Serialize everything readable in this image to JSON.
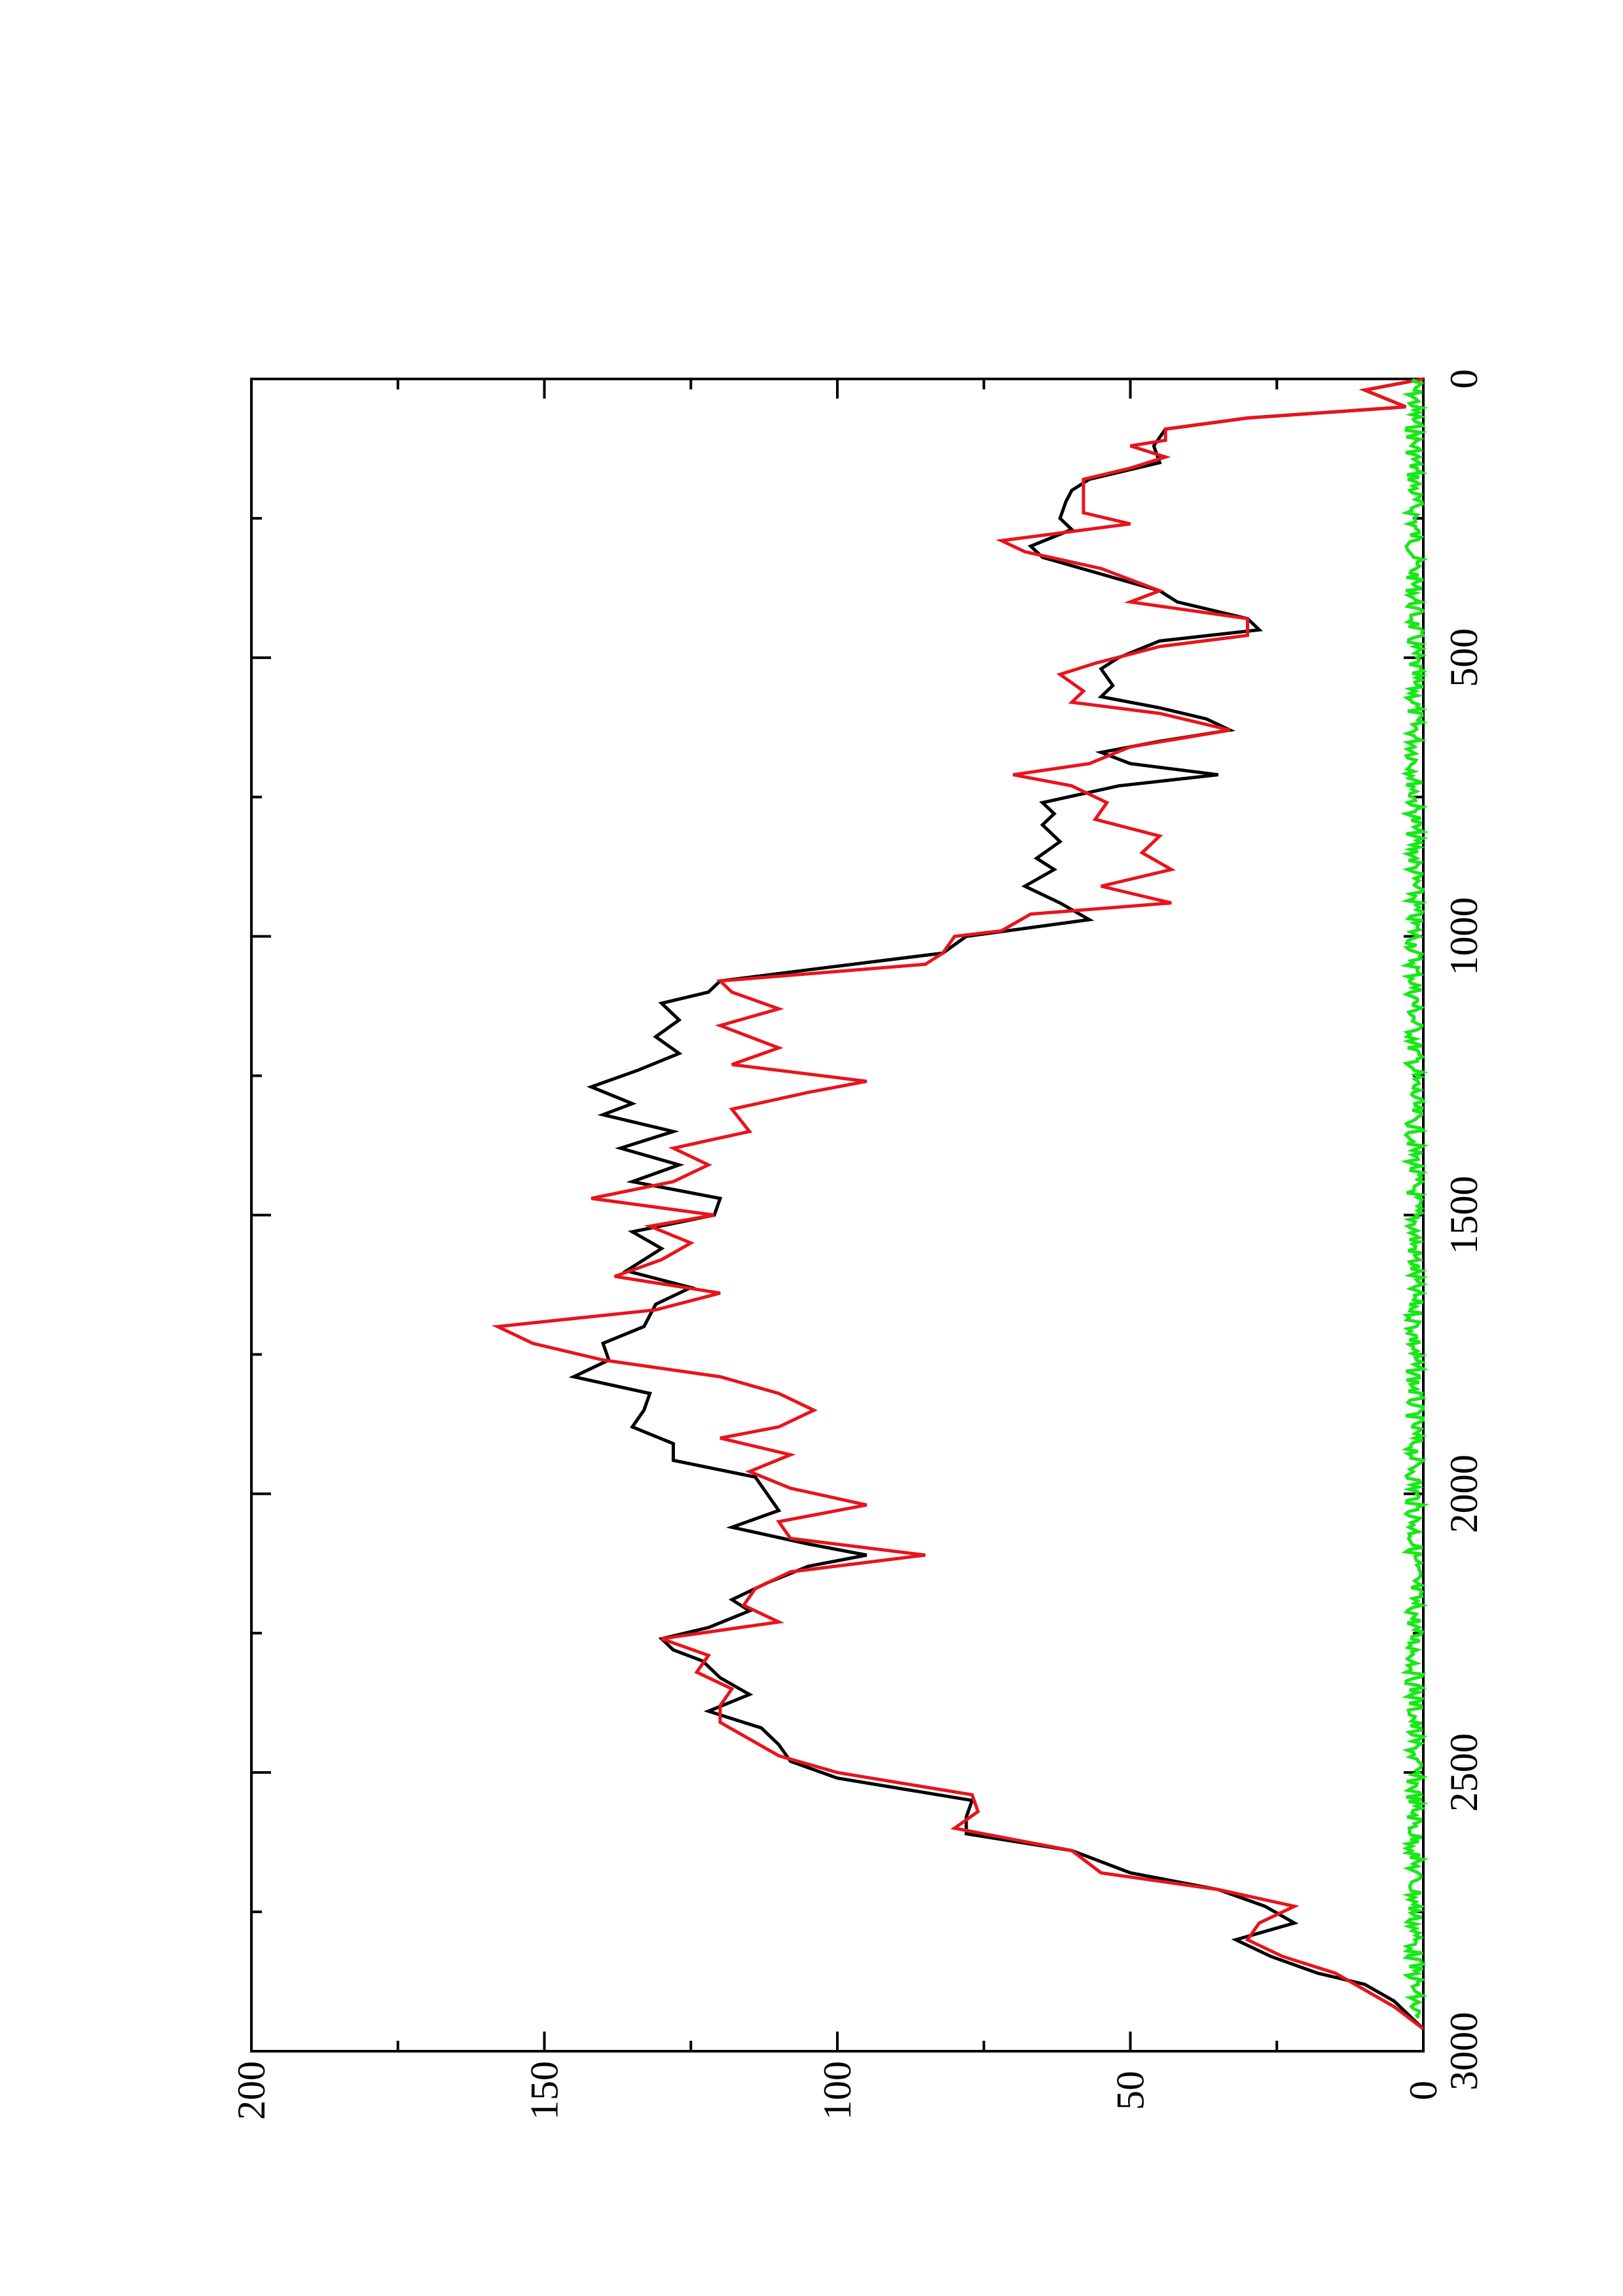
{
  "chart_data": {
    "type": "line",
    "title": "",
    "xlabel": "",
    "ylabel": "",
    "xlim": [
      0,
      3000
    ],
    "ylim": [
      0,
      200
    ],
    "x_ticks": [
      0,
      500,
      1000,
      1500,
      2000,
      2500,
      3000
    ],
    "x_tick_labels": [
      "0",
      "500",
      "1000",
      "1500",
      "2000",
      "2500",
      "3000"
    ],
    "y_ticks": [
      0,
      50,
      100,
      150,
      200
    ],
    "y_tick_labels": [
      "0",
      "50",
      "100",
      "150",
      "200"
    ],
    "grid": false,
    "legend": "none",
    "orientation": "rotated 90 degrees counter-clockwise",
    "series": [
      {
        "color": "#000000",
        "points": [
          [
            0,
            0
          ],
          [
            20,
            10
          ],
          [
            50,
            3
          ],
          [
            70,
            30
          ],
          [
            90,
            44
          ],
          [
            120,
            46
          ],
          [
            150,
            45
          ],
          [
            180,
            57
          ],
          [
            200,
            60
          ],
          [
            220,
            61
          ],
          [
            250,
            62
          ],
          [
            270,
            60
          ],
          [
            300,
            67
          ],
          [
            320,
            65
          ],
          [
            350,
            55
          ],
          [
            380,
            45
          ],
          [
            400,
            42
          ],
          [
            430,
            30
          ],
          [
            450,
            28
          ],
          [
            470,
            45
          ],
          [
            500,
            52
          ],
          [
            520,
            55
          ],
          [
            550,
            53
          ],
          [
            570,
            55
          ],
          [
            590,
            45
          ],
          [
            610,
            37
          ],
          [
            630,
            33
          ],
          [
            650,
            45
          ],
          [
            670,
            55
          ],
          [
            690,
            50
          ],
          [
            710,
            35
          ],
          [
            730,
            52
          ],
          [
            760,
            65
          ],
          [
            780,
            63
          ],
          [
            800,
            65
          ],
          [
            830,
            62
          ],
          [
            860,
            66
          ],
          [
            880,
            63
          ],
          [
            910,
            68
          ],
          [
            940,
            62
          ],
          [
            970,
            57
          ],
          [
            1000,
            78
          ],
          [
            1030,
            82
          ],
          [
            1060,
            105
          ],
          [
            1080,
            120
          ],
          [
            1100,
            122
          ],
          [
            1120,
            130
          ],
          [
            1150,
            127
          ],
          [
            1180,
            131
          ],
          [
            1210,
            127
          ],
          [
            1240,
            134
          ],
          [
            1270,
            142
          ],
          [
            1300,
            135
          ],
          [
            1320,
            140
          ],
          [
            1350,
            128
          ],
          [
            1380,
            137
          ],
          [
            1410,
            127
          ],
          [
            1440,
            135
          ],
          [
            1470,
            120
          ],
          [
            1500,
            121
          ],
          [
            1530,
            135
          ],
          [
            1560,
            130
          ],
          [
            1600,
            136
          ],
          [
            1630,
            125
          ],
          [
            1660,
            131
          ],
          [
            1700,
            133
          ],
          [
            1730,
            140
          ],
          [
            1760,
            139
          ],
          [
            1790,
            145
          ],
          [
            1820,
            132
          ],
          [
            1850,
            133
          ],
          [
            1880,
            135
          ],
          [
            1910,
            128
          ],
          [
            1940,
            128
          ],
          [
            1970,
            114
          ],
          [
            2000,
            112
          ],
          [
            2030,
            110
          ],
          [
            2060,
            118
          ],
          [
            2090,
            105
          ],
          [
            2110,
            95
          ],
          [
            2130,
            105
          ],
          [
            2160,
            112
          ],
          [
            2190,
            118
          ],
          [
            2210,
            115
          ],
          [
            2240,
            122
          ],
          [
            2260,
            130
          ],
          [
            2280,
            128
          ],
          [
            2300,
            123
          ],
          [
            2330,
            120
          ],
          [
            2360,
            115
          ],
          [
            2390,
            122
          ],
          [
            2420,
            113
          ],
          [
            2450,
            110
          ],
          [
            2480,
            108
          ],
          [
            2510,
            100
          ],
          [
            2550,
            77
          ],
          [
            2580,
            78
          ],
          [
            2610,
            78
          ],
          [
            2640,
            60
          ],
          [
            2680,
            50
          ],
          [
            2710,
            35
          ],
          [
            2740,
            27
          ],
          [
            2770,
            22
          ],
          [
            2800,
            32
          ],
          [
            2830,
            26
          ],
          [
            2860,
            18
          ],
          [
            2880,
            10
          ],
          [
            2910,
            5
          ],
          [
            2940,
            2
          ],
          [
            2960,
            0
          ]
        ]
      },
      {
        "color": "#e8141c",
        "points": [
          [
            0,
            0
          ],
          [
            20,
            10
          ],
          [
            50,
            3
          ],
          [
            70,
            30
          ],
          [
            90,
            44
          ],
          [
            110,
            44
          ],
          [
            120,
            50
          ],
          [
            140,
            44
          ],
          [
            160,
            50
          ],
          [
            180,
            58
          ],
          [
            210,
            58
          ],
          [
            240,
            58
          ],
          [
            260,
            50
          ],
          [
            290,
            72
          ],
          [
            310,
            68
          ],
          [
            340,
            55
          ],
          [
            380,
            45
          ],
          [
            400,
            50
          ],
          [
            430,
            30
          ],
          [
            460,
            30
          ],
          [
            480,
            45
          ],
          [
            510,
            56
          ],
          [
            530,
            62
          ],
          [
            560,
            58
          ],
          [
            580,
            60
          ],
          [
            600,
            45
          ],
          [
            630,
            33
          ],
          [
            660,
            50
          ],
          [
            690,
            57
          ],
          [
            710,
            70
          ],
          [
            730,
            60
          ],
          [
            760,
            54
          ],
          [
            790,
            56
          ],
          [
            820,
            45
          ],
          [
            850,
            48
          ],
          [
            880,
            43
          ],
          [
            910,
            55
          ],
          [
            940,
            43
          ],
          [
            960,
            67
          ],
          [
            990,
            72
          ],
          [
            1000,
            80
          ],
          [
            1030,
            82
          ],
          [
            1050,
            85
          ],
          [
            1080,
            120
          ],
          [
            1100,
            118
          ],
          [
            1130,
            110
          ],
          [
            1160,
            120
          ],
          [
            1200,
            110
          ],
          [
            1230,
            118
          ],
          [
            1260,
            95
          ],
          [
            1280,
            105
          ],
          [
            1310,
            118
          ],
          [
            1350,
            115
          ],
          [
            1380,
            128
          ],
          [
            1410,
            122
          ],
          [
            1440,
            128
          ],
          [
            1470,
            142
          ],
          [
            1500,
            121
          ],
          [
            1520,
            132
          ],
          [
            1550,
            125
          ],
          [
            1580,
            130
          ],
          [
            1610,
            138
          ],
          [
            1640,
            120
          ],
          [
            1670,
            131
          ],
          [
            1700,
            158
          ],
          [
            1730,
            152
          ],
          [
            1760,
            140
          ],
          [
            1790,
            120
          ],
          [
            1820,
            110
          ],
          [
            1850,
            104
          ],
          [
            1880,
            110
          ],
          [
            1900,
            120
          ],
          [
            1930,
            108
          ],
          [
            1960,
            115
          ],
          [
            1990,
            108
          ],
          [
            2020,
            95
          ],
          [
            2050,
            110
          ],
          [
            2080,
            108
          ],
          [
            2110,
            85
          ],
          [
            2140,
            108
          ],
          [
            2170,
            114
          ],
          [
            2200,
            116
          ],
          [
            2230,
            110
          ],
          [
            2260,
            130
          ],
          [
            2290,
            122
          ],
          [
            2320,
            124
          ],
          [
            2350,
            118
          ],
          [
            2380,
            120
          ],
          [
            2410,
            120
          ],
          [
            2440,
            115
          ],
          [
            2470,
            110
          ],
          [
            2500,
            100
          ],
          [
            2540,
            77
          ],
          [
            2570,
            76
          ],
          [
            2600,
            80
          ],
          [
            2640,
            60
          ],
          [
            2680,
            55
          ],
          [
            2710,
            35
          ],
          [
            2740,
            22
          ],
          [
            2770,
            28
          ],
          [
            2800,
            30
          ],
          [
            2830,
            24
          ],
          [
            2860,
            15
          ],
          [
            2890,
            10
          ],
          [
            2920,
            5
          ],
          [
            2960,
            0
          ]
        ]
      },
      {
        "color": "#17e817",
        "noise_level": [
          0,
          3
        ],
        "points": [
          [
            0,
            1
          ],
          [
            500,
            1
          ],
          [
            1000,
            1
          ],
          [
            1500,
            1
          ],
          [
            2000,
            1
          ],
          [
            2500,
            1
          ],
          [
            2940,
            1
          ]
        ]
      }
    ]
  }
}
